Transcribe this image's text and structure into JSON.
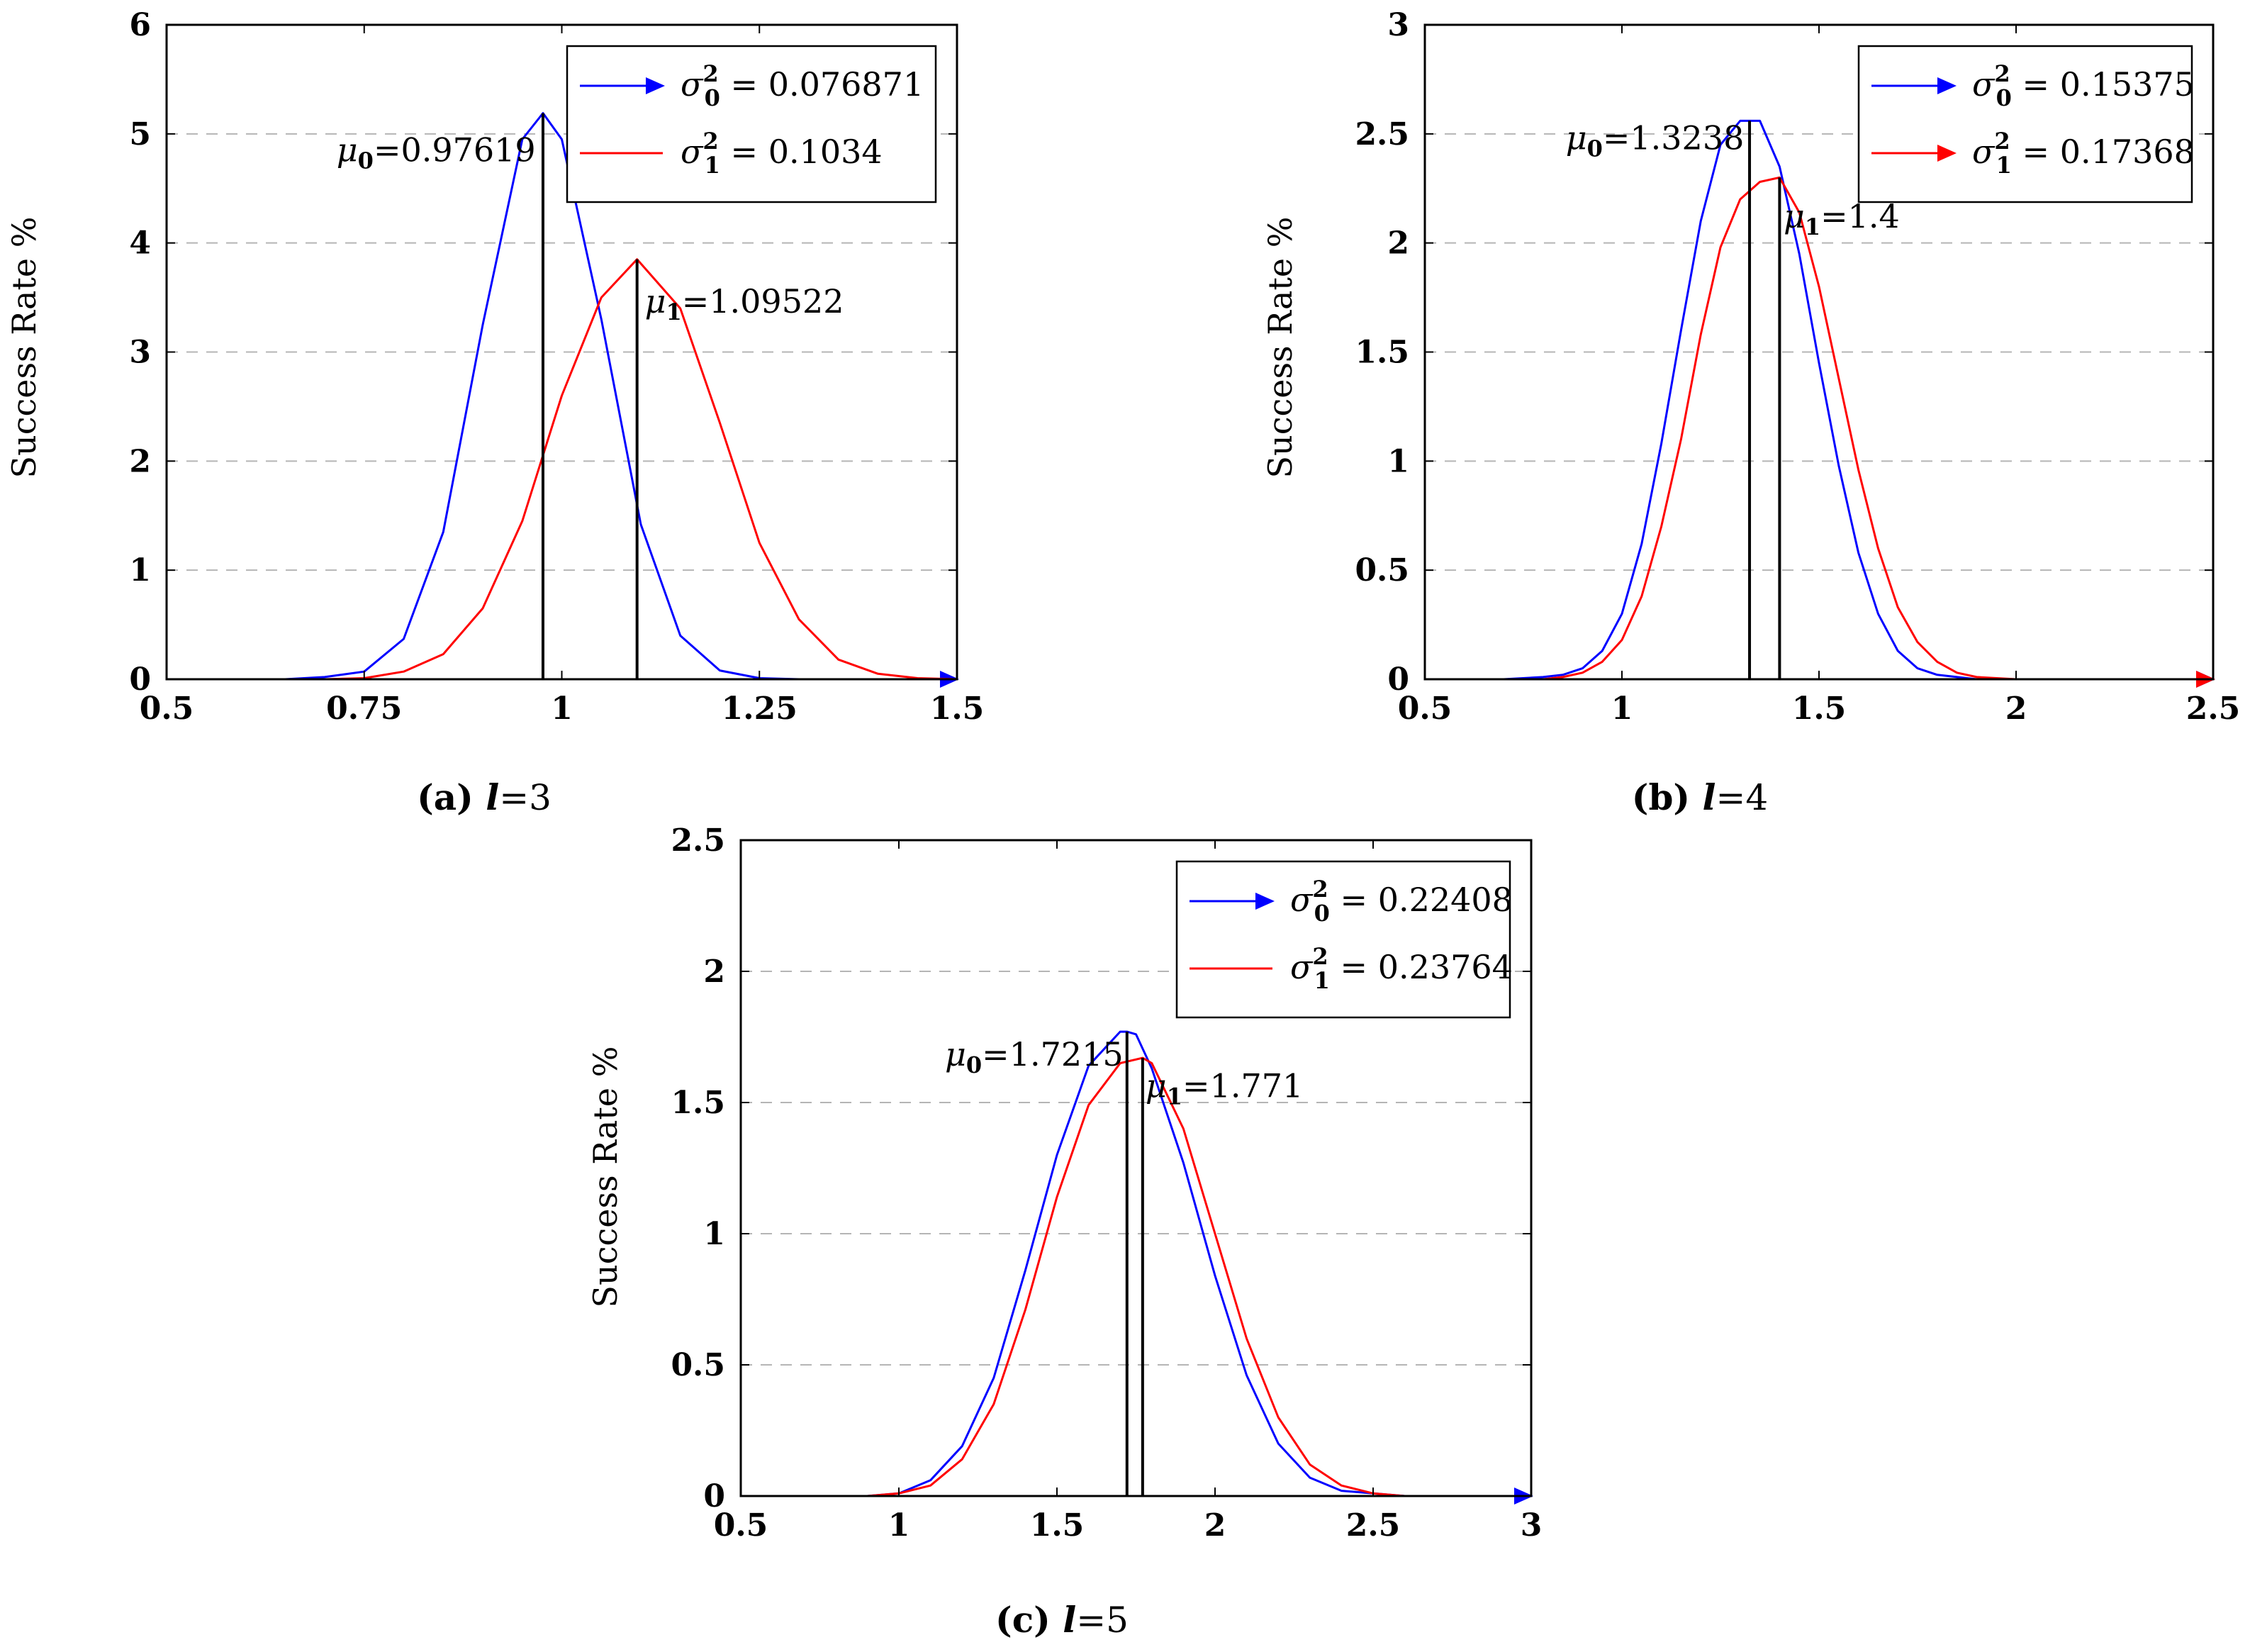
{
  "chart_data": [
    {
      "type": "line",
      "caption_prefix": "(a)",
      "caption_var": "l",
      "caption_eq": "=3",
      "xlabel": "",
      "ylabel": "Success Rate %",
      "xlim": [
        0.5,
        1.5
      ],
      "ylim": [
        0,
        6
      ],
      "xticks": [
        0.5,
        0.75,
        1,
        1.25,
        1.5
      ],
      "xtick_labels": [
        "0.5",
        "0.75",
        "1",
        "1.25",
        "1.5"
      ],
      "yticks": [
        0,
        1,
        2,
        3,
        4,
        5,
        6
      ],
      "ytick_labels": [
        "0",
        "1",
        "2",
        "3",
        "4",
        "5",
        "6"
      ],
      "grid": "horizontal-dashed",
      "legend_position": "top-right",
      "series": [
        {
          "name": "σ0^2 = 0.076871",
          "legend_symbol": "σ",
          "legend_sub": "0",
          "legend_value": " = 0.076871",
          "color": "#0000ff",
          "arrow": true,
          "x": [
            0.5,
            0.55,
            0.6,
            0.65,
            0.7,
            0.75,
            0.8,
            0.85,
            0.9,
            0.95,
            0.97619,
            1.0,
            1.05,
            1.1,
            1.15,
            1.2,
            1.25,
            1.3,
            1.35,
            1.4,
            1.45,
            1.5
          ],
          "y": [
            0,
            0,
            0,
            0,
            0.02,
            0.07,
            0.37,
            1.35,
            3.25,
            4.95,
            5.19,
            4.95,
            3.3,
            1.42,
            0.4,
            0.08,
            0.01,
            0,
            0,
            0,
            0,
            0
          ]
        },
        {
          "name": "σ1^2 = 0.1034",
          "legend_symbol": "σ",
          "legend_sub": "1",
          "legend_value": " = 0.1034",
          "color": "#ff0000",
          "arrow": false,
          "x": [
            0.5,
            0.55,
            0.6,
            0.65,
            0.7,
            0.75,
            0.8,
            0.85,
            0.9,
            0.95,
            1.0,
            1.05,
            1.09522,
            1.15,
            1.2,
            1.25,
            1.3,
            1.35,
            1.4,
            1.45,
            1.5
          ],
          "y": [
            0,
            0,
            0,
            0,
            0,
            0.01,
            0.07,
            0.23,
            0.65,
            1.45,
            2.6,
            3.5,
            3.85,
            3.4,
            2.35,
            1.25,
            0.55,
            0.18,
            0.05,
            0.01,
            0
          ]
        }
      ],
      "mean_lines": [
        {
          "x": 0.97619,
          "y_top": 5.19,
          "label_sym": "μ",
          "label_sub": "0",
          "label_value": "=0.97619",
          "label_anchor": "end",
          "label_x": 0.967,
          "label_y": 4.75
        },
        {
          "x": 1.09522,
          "y_top": 3.85,
          "label_sym": "μ",
          "label_sub": "1",
          "label_value": "=1.09522",
          "label_anchor": "start",
          "label_x": 1.105,
          "label_y": 3.36
        }
      ]
    },
    {
      "type": "line",
      "caption_prefix": "(b)",
      "caption_var": "l",
      "caption_eq": "=4",
      "xlabel": "",
      "ylabel": "Success Rate %",
      "xlim": [
        0.5,
        2.5
      ],
      "ylim": [
        0,
        3
      ],
      "xticks": [
        0.5,
        1,
        1.5,
        2,
        2.5
      ],
      "xtick_labels": [
        "0.5",
        "1",
        "1.5",
        "2",
        "2.5"
      ],
      "yticks": [
        0,
        0.5,
        1,
        1.5,
        2,
        2.5,
        3
      ],
      "ytick_labels": [
        "0",
        "0.5",
        "1",
        "1.5",
        "2",
        "2.5",
        "3"
      ],
      "grid": "horizontal-dashed",
      "legend_position": "top-right",
      "series": [
        {
          "name": "σ0^2 = 0.15375",
          "legend_symbol": "σ",
          "legend_sub": "0",
          "legend_value": " = 0.15375",
          "color": "#0000ff",
          "arrow": true,
          "x": [
            0.5,
            0.6,
            0.7,
            0.8,
            0.85,
            0.9,
            0.95,
            1.0,
            1.05,
            1.1,
            1.15,
            1.2,
            1.25,
            1.3,
            1.3238,
            1.35,
            1.4,
            1.45,
            1.5,
            1.55,
            1.6,
            1.65,
            1.7,
            1.75,
            1.8,
            1.9,
            2.0,
            2.1,
            2.2,
            2.3,
            2.4,
            2.5
          ],
          "y": [
            0,
            0,
            0,
            0.01,
            0.02,
            0.05,
            0.13,
            0.3,
            0.62,
            1.08,
            1.6,
            2.1,
            2.45,
            2.56,
            2.56,
            2.56,
            2.35,
            1.95,
            1.45,
            0.98,
            0.58,
            0.3,
            0.13,
            0.05,
            0.02,
            0,
            0,
            0,
            0,
            0,
            0,
            0
          ]
        },
        {
          "name": "σ1^2 = 0.17368",
          "legend_symbol": "σ",
          "legend_sub": "1",
          "legend_value": " = 0.17368",
          "color": "#ff0000",
          "arrow": true,
          "x": [
            0.5,
            0.6,
            0.7,
            0.8,
            0.85,
            0.9,
            0.95,
            1.0,
            1.05,
            1.1,
            1.15,
            1.2,
            1.25,
            1.3,
            1.35,
            1.4,
            1.45,
            1.5,
            1.55,
            1.6,
            1.65,
            1.7,
            1.75,
            1.8,
            1.85,
            1.9,
            2.0,
            2.1,
            2.2,
            2.3,
            2.4,
            2.5
          ],
          "y": [
            0,
            0,
            0,
            0,
            0.01,
            0.03,
            0.08,
            0.18,
            0.38,
            0.7,
            1.1,
            1.58,
            1.98,
            2.2,
            2.28,
            2.3,
            2.14,
            1.8,
            1.38,
            0.96,
            0.6,
            0.33,
            0.17,
            0.08,
            0.03,
            0.01,
            0,
            0,
            0,
            0,
            0,
            0
          ]
        }
      ],
      "mean_lines": [
        {
          "x": 1.3238,
          "y_top": 2.56,
          "label_sym": "μ",
          "label_sub": "0",
          "label_value": "=1.3238",
          "label_anchor": "end",
          "label_x": 1.31,
          "label_y": 2.43
        },
        {
          "x": 1.4,
          "y_top": 2.3,
          "label_sym": "μ",
          "label_sub": "1",
          "label_value": "=1.4",
          "label_anchor": "start",
          "label_x": 1.41,
          "label_y": 2.07
        }
      ]
    },
    {
      "type": "line",
      "caption_prefix": "(c)",
      "caption_var": "l",
      "caption_eq": "=5",
      "xlabel": "",
      "ylabel": "Success Rate %",
      "xlim": [
        0.5,
        3
      ],
      "ylim": [
        0,
        2.5
      ],
      "xticks": [
        0.5,
        1,
        1.5,
        2,
        2.5,
        3
      ],
      "xtick_labels": [
        "0.5",
        "1",
        "1.5",
        "2",
        "2.5",
        "3"
      ],
      "yticks": [
        0,
        0.5,
        1,
        1.5,
        2,
        2.5
      ],
      "ytick_labels": [
        "0",
        "0.5",
        "1",
        "1.5",
        "2",
        "2.5"
      ],
      "grid": "horizontal-dashed",
      "legend_position": "top-right",
      "series": [
        {
          "name": "σ0^2 = 0.22408",
          "legend_symbol": "σ",
          "legend_sub": "0",
          "legend_value": " = 0.22408",
          "color": "#0000ff",
          "arrow": true,
          "x": [
            0.5,
            0.7,
            0.8,
            0.9,
            1.0,
            1.1,
            1.2,
            1.3,
            1.4,
            1.5,
            1.6,
            1.7,
            1.7215,
            1.75,
            1.8,
            1.9,
            2.0,
            2.1,
            2.2,
            2.3,
            2.4,
            2.5,
            2.6,
            2.7,
            2.8,
            2.9,
            3.0
          ],
          "y": [
            0,
            0,
            0,
            0,
            0.01,
            0.06,
            0.19,
            0.45,
            0.86,
            1.3,
            1.64,
            1.77,
            1.77,
            1.76,
            1.63,
            1.27,
            0.84,
            0.46,
            0.2,
            0.07,
            0.02,
            0.01,
            0,
            0,
            0,
            0,
            0
          ]
        },
        {
          "name": "σ1^2 = 0.23764",
          "legend_symbol": "σ",
          "legend_sub": "1",
          "legend_value": " = 0.23764",
          "color": "#ff0000",
          "arrow": false,
          "x": [
            0.5,
            0.7,
            0.8,
            0.9,
            1.0,
            1.1,
            1.2,
            1.3,
            1.4,
            1.5,
            1.6,
            1.7,
            1.771,
            1.8,
            1.9,
            2.0,
            2.1,
            2.2,
            2.3,
            2.4,
            2.5,
            2.6,
            2.7,
            2.8,
            2.9,
            3.0
          ],
          "y": [
            0,
            0,
            0,
            0,
            0.01,
            0.04,
            0.14,
            0.35,
            0.71,
            1.14,
            1.49,
            1.65,
            1.67,
            1.65,
            1.4,
            1.0,
            0.6,
            0.3,
            0.12,
            0.04,
            0.01,
            0,
            0,
            0,
            0,
            0
          ]
        }
      ],
      "mean_lines": [
        {
          "x": 1.7215,
          "y_top": 1.77,
          "label_sym": "μ",
          "label_sub": "0",
          "label_value": "=1.7215",
          "label_anchor": "end",
          "label_x": 1.71,
          "label_y": 1.64
        },
        {
          "x": 1.771,
          "y_top": 1.67,
          "label_sym": "μ",
          "label_sub": "1",
          "label_value": "=1.771",
          "label_anchor": "start",
          "label_x": 1.78,
          "label_y": 1.52
        }
      ]
    }
  ]
}
